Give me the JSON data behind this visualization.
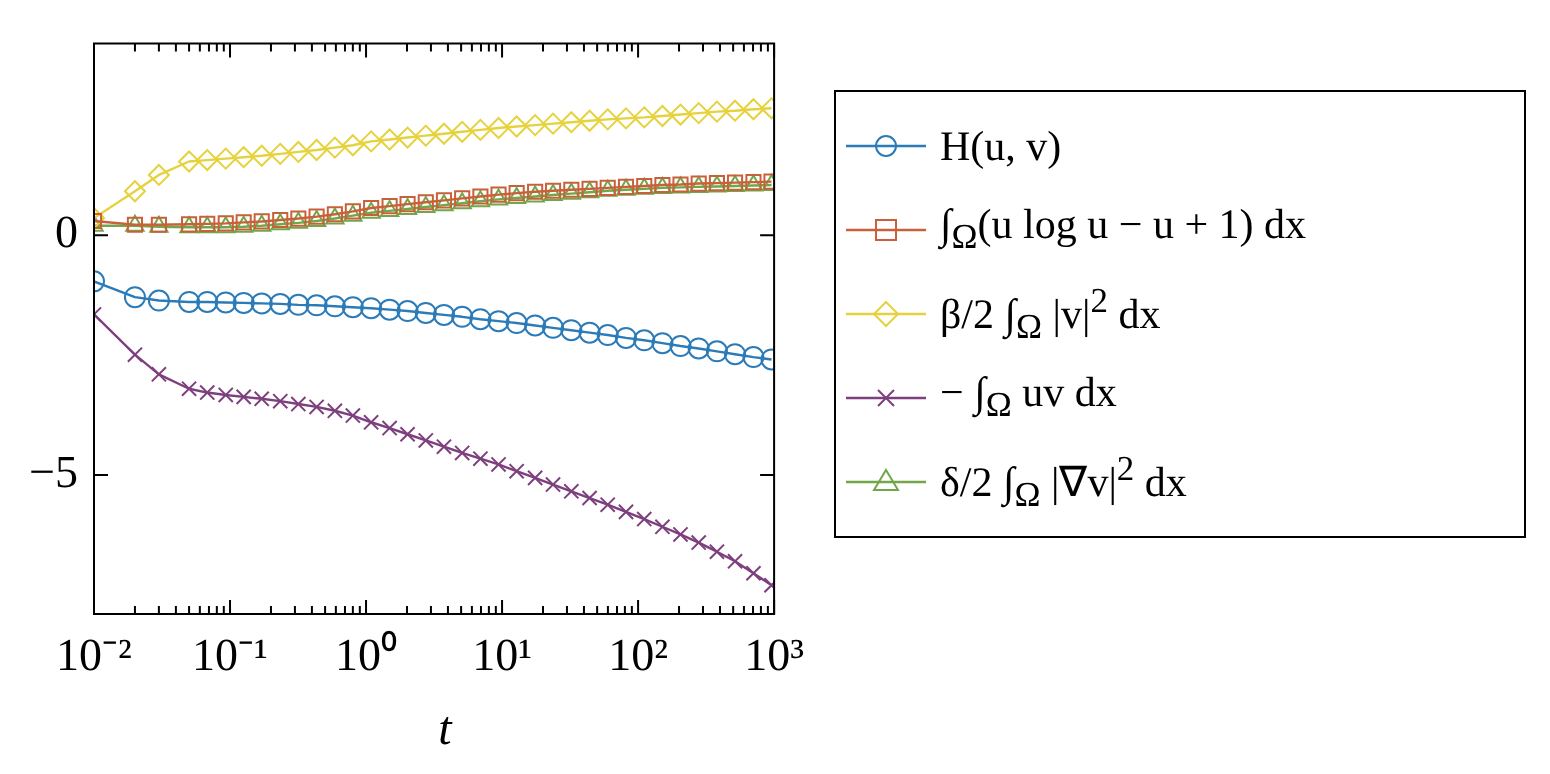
{
  "chart_data": {
    "type": "line",
    "xlabel": "t",
    "log": "x",
    "grid": false,
    "legend": "right",
    "line_style": "solid",
    "xlim": [
      0.01,
      1000
    ],
    "ylim": [
      -7.9,
      4
    ],
    "xticks": [
      {
        "value": 0.01,
        "label": "10⁻²"
      },
      {
        "value": 0.02,
        "label": null
      },
      {
        "value": 0.03,
        "label": null
      },
      {
        "value": 0.04,
        "label": null
      },
      {
        "value": 0.05,
        "label": null
      },
      {
        "value": 0.06,
        "label": null
      },
      {
        "value": 0.07,
        "label": null
      },
      {
        "value": 0.08,
        "label": null
      },
      {
        "value": 0.09,
        "label": null
      },
      {
        "value": 0.1,
        "label": "10⁻¹"
      },
      {
        "value": 0.2,
        "label": null
      },
      {
        "value": 0.3,
        "label": null
      },
      {
        "value": 0.4,
        "label": null
      },
      {
        "value": 0.5,
        "label": null
      },
      {
        "value": 0.6,
        "label": null
      },
      {
        "value": 0.7,
        "label": null
      },
      {
        "value": 0.8,
        "label": null
      },
      {
        "value": 0.9,
        "label": null
      },
      {
        "value": 1,
        "label": "10⁰"
      },
      {
        "value": 2,
        "label": null
      },
      {
        "value": 3,
        "label": null
      },
      {
        "value": 4,
        "label": null
      },
      {
        "value": 5,
        "label": null
      },
      {
        "value": 6,
        "label": null
      },
      {
        "value": 7,
        "label": null
      },
      {
        "value": 8,
        "label": null
      },
      {
        "value": 9,
        "label": null
      },
      {
        "value": 10,
        "label": "10¹"
      },
      {
        "value": 20,
        "label": null
      },
      {
        "value": 30,
        "label": null
      },
      {
        "value": 40,
        "label": null
      },
      {
        "value": 50,
        "label": null
      },
      {
        "value": 60,
        "label": null
      },
      {
        "value": 70,
        "label": null
      },
      {
        "value": 80,
        "label": null
      },
      {
        "value": 90,
        "label": null
      },
      {
        "value": 100,
        "label": "10²"
      },
      {
        "value": 200,
        "label": null
      },
      {
        "value": 300,
        "label": null
      },
      {
        "value": 400,
        "label": null
      },
      {
        "value": 500,
        "label": null
      },
      {
        "value": 600,
        "label": null
      },
      {
        "value": 700,
        "label": null
      },
      {
        "value": 800,
        "label": null
      },
      {
        "value": 900,
        "label": null
      },
      {
        "value": 1000,
        "label": "10³"
      }
    ],
    "yticks": [
      {
        "value": -5,
        "label": "−5"
      },
      0
    ],
    "x": [
      0.01,
      0.02,
      0.03,
      0.05,
      0.068,
      0.093,
      0.126,
      0.171,
      0.234,
      0.318,
      0.433,
      0.59,
      0.8,
      1.09,
      1.49,
      2.02,
      2.75,
      3.74,
      5.09,
      6.93,
      9.42,
      12.8,
      17.5,
      23.7,
      32.3,
      44,
      59.8,
      81.5,
      111,
      151,
      205,
      279,
      380,
      516,
      705,
      957
    ],
    "series": [
      {
        "name": "H(u, v)",
        "color": "#2b7bb9",
        "marker": "circle",
        "values": [
          -0.96,
          -1.29,
          -1.36,
          -1.39,
          -1.39,
          -1.4,
          -1.41,
          -1.42,
          -1.43,
          -1.45,
          -1.46,
          -1.48,
          -1.5,
          -1.52,
          -1.55,
          -1.58,
          -1.62,
          -1.66,
          -1.7,
          -1.75,
          -1.79,
          -1.83,
          -1.88,
          -1.93,
          -1.98,
          -2.03,
          -2.08,
          -2.14,
          -2.19,
          -2.25,
          -2.31,
          -2.36,
          -2.42,
          -2.48,
          -2.54,
          -2.59
        ]
      },
      {
        "name": "∫$_{Ω}$(u log u − u + 1) dx",
        "color": "#c8603a",
        "marker": "square",
        "values": [
          0.3,
          0.22,
          0.22,
          0.23,
          0.24,
          0.25,
          0.27,
          0.29,
          0.32,
          0.35,
          0.39,
          0.44,
          0.5,
          0.57,
          0.61,
          0.65,
          0.69,
          0.73,
          0.77,
          0.81,
          0.85,
          0.88,
          0.91,
          0.93,
          0.95,
          0.97,
          0.99,
          1.01,
          1.03,
          1.05,
          1.06,
          1.08,
          1.09,
          1.1,
          1.11,
          1.12
        ]
      },
      {
        "name": "β/2 ∫$_{Ω}$ |v|$^{2}$ dx",
        "color": "#e6d23c",
        "marker": "diamond",
        "values": [
          0.36,
          0.92,
          1.26,
          1.54,
          1.57,
          1.6,
          1.63,
          1.66,
          1.7,
          1.74,
          1.78,
          1.83,
          1.88,
          1.96,
          2.0,
          2.04,
          2.08,
          2.12,
          2.16,
          2.2,
          2.24,
          2.27,
          2.3,
          2.33,
          2.36,
          2.39,
          2.42,
          2.44,
          2.46,
          2.49,
          2.52,
          2.55,
          2.58,
          2.6,
          2.63,
          2.65
        ]
      },
      {
        "name": "− ∫$_{Ω}$ uv dx",
        "color": "#7e3f7e",
        "marker": "cross",
        "values": [
          -1.65,
          -2.49,
          -2.9,
          -3.2,
          -3.28,
          -3.33,
          -3.37,
          -3.41,
          -3.46,
          -3.52,
          -3.58,
          -3.66,
          -3.76,
          -3.9,
          -4.02,
          -4.15,
          -4.28,
          -4.41,
          -4.54,
          -4.66,
          -4.78,
          -4.92,
          -5.06,
          -5.2,
          -5.34,
          -5.48,
          -5.62,
          -5.77,
          -5.92,
          -6.08,
          -6.24,
          -6.41,
          -6.6,
          -6.8,
          -7.05,
          -7.3
        ]
      },
      {
        "name": "δ/2 ∫$_{Ω}$ |∇v|$^{2}$ dx",
        "color": "#73a64a",
        "marker": "triangle",
        "values": [
          0.2,
          0.2,
          0.18,
          0.17,
          0.17,
          0.17,
          0.18,
          0.2,
          0.23,
          0.26,
          0.3,
          0.35,
          0.41,
          0.47,
          0.51,
          0.55,
          0.59,
          0.63,
          0.67,
          0.71,
          0.75,
          0.78,
          0.81,
          0.84,
          0.87,
          0.9,
          0.93,
          0.95,
          0.97,
          0.99,
          1.0,
          1.01,
          1.02,
          1.03,
          1.04,
          1.05
        ]
      }
    ]
  }
}
